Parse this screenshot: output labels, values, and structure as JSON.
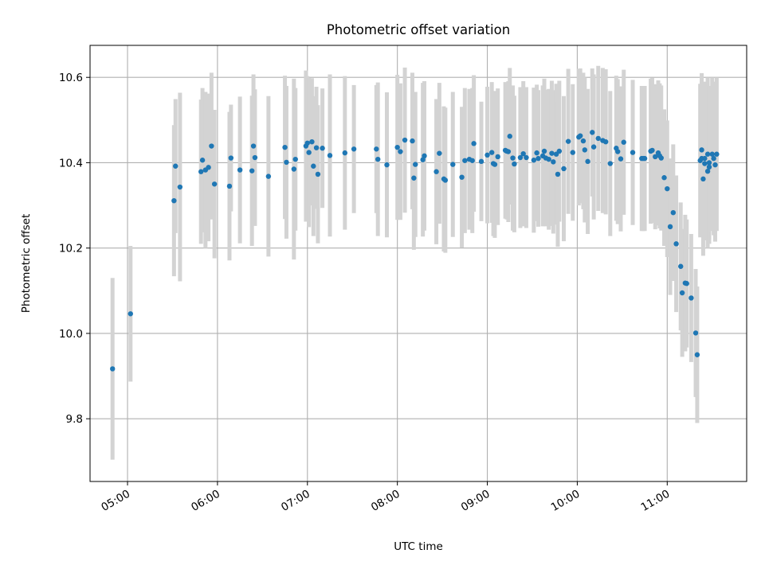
{
  "chart_data": {
    "type": "scatter",
    "title": "Photometric offset variation",
    "xlabel": "UTC time",
    "ylabel": "Photometric offset",
    "xlim": [
      "04:35",
      "11:53"
    ],
    "ylim": [
      9.653,
      10.675
    ],
    "x_ticks": [
      "05:00",
      "06:00",
      "07:00",
      "08:00",
      "09:00",
      "10:00",
      "11:00"
    ],
    "y_ticks": [
      "9.8",
      "10.0",
      "10.2",
      "10.4",
      "10.6"
    ],
    "grid": true,
    "colors": {
      "points": "#1f77b4",
      "error_bars": "#d3d3d3",
      "grid": "#b0b0b0"
    },
    "series": [
      {
        "x": [
          "04:50",
          "05:02",
          "05:31",
          "05:32",
          "05:35",
          "05:49",
          "05:50",
          "05:52",
          "05:54",
          "05:56",
          "05:58",
          "06:08",
          "06:09",
          "06:15",
          "06:23",
          "06:24",
          "06:25",
          "06:34",
          "06:45",
          "06:46",
          "06:51",
          "06:52",
          "06:59",
          "07:00",
          "07:01",
          "07:03",
          "07:04",
          "07:06",
          "07:07",
          "07:10",
          "07:15",
          "07:25",
          "07:31",
          "07:46",
          "07:47",
          "07:53",
          "08:00",
          "08:02",
          "08:05",
          "08:10",
          "08:11",
          "08:12",
          "08:17",
          "08:18",
          "08:26",
          "08:28",
          "08:31",
          "08:32",
          "08:37",
          "08:43",
          "08:45",
          "08:48",
          "08:50",
          "08:51",
          "08:56",
          "09:00",
          "09:03",
          "09:04",
          "09:05",
          "09:07",
          "09:12",
          "09:13",
          "09:14",
          "09:15",
          "09:17",
          "09:18",
          "09:22",
          "09:24",
          "09:26",
          "09:31",
          "09:33",
          "09:34",
          "09:37",
          "09:38",
          "09:39",
          "09:41",
          "09:43",
          "09:44",
          "09:46",
          "09:47",
          "09:48",
          "09:51",
          "09:54",
          "09:57",
          "10:01",
          "10:02",
          "10:04",
          "10:05",
          "10:07",
          "10:10",
          "10:11",
          "10:14",
          "10:17",
          "10:19",
          "10:22",
          "10:26",
          "10:27",
          "10:29",
          "10:31",
          "10:37",
          "10:43",
          "10:44",
          "10:45",
          "10:49",
          "10:50",
          "10:52",
          "10:54",
          "10:55",
          "10:56",
          "10:58",
          "11:00",
          "11:02",
          "11:04",
          "11:06",
          "11:09",
          "11:10",
          "11:12",
          "11:13",
          "11:16",
          "11:19",
          "11:20",
          "11:22",
          "11:23",
          "11:23",
          "11:24",
          "11:25",
          "11:25",
          "11:27",
          "11:27",
          "11:28",
          "11:28",
          "11:30",
          "11:31",
          "11:32",
          "11:33"
        ],
        "y": [
          9.917,
          10.046,
          10.311,
          10.392,
          10.343,
          10.379,
          10.406,
          10.383,
          10.389,
          10.439,
          10.35,
          10.345,
          10.411,
          10.383,
          10.381,
          10.439,
          10.412,
          10.368,
          10.436,
          10.401,
          10.385,
          10.408,
          10.439,
          10.446,
          10.424,
          10.449,
          10.392,
          10.435,
          10.373,
          10.434,
          10.417,
          10.423,
          10.432,
          10.432,
          10.408,
          10.395,
          10.436,
          10.426,
          10.453,
          10.451,
          10.364,
          10.396,
          10.407,
          10.416,
          10.379,
          10.422,
          10.362,
          10.359,
          10.396,
          10.366,
          10.405,
          10.408,
          10.405,
          10.445,
          10.403,
          10.418,
          10.424,
          10.398,
          10.396,
          10.414,
          10.429,
          10.427,
          10.426,
          10.462,
          10.411,
          10.397,
          10.412,
          10.421,
          10.412,
          10.406,
          10.423,
          10.41,
          10.416,
          10.427,
          10.411,
          10.408,
          10.422,
          10.402,
          10.42,
          10.373,
          10.427,
          10.386,
          10.45,
          10.424,
          10.46,
          10.463,
          10.451,
          10.43,
          10.403,
          10.471,
          10.437,
          10.457,
          10.452,
          10.449,
          10.398,
          10.434,
          10.426,
          10.409,
          10.448,
          10.424,
          10.41,
          10.41,
          10.41,
          10.427,
          10.429,
          10.414,
          10.423,
          10.416,
          10.411,
          10.365,
          10.339,
          10.25,
          10.283,
          10.21,
          10.157,
          10.095,
          10.118,
          10.117,
          10.083,
          10.001,
          9.95,
          10.405,
          10.41,
          10.43,
          10.362,
          10.398,
          10.41,
          10.38,
          10.42,
          10.39,
          10.4,
          10.42,
          10.41,
          10.395,
          10.42
        ],
        "yerr": [
          0.213,
          0.159,
          0.177,
          0.157,
          0.221,
          0.169,
          0.169,
          0.183,
          0.173,
          0.172,
          0.174,
          0.174,
          0.125,
          0.172,
          0.176,
          0.168,
          0.16,
          0.188,
          0.168,
          0.179,
          0.212,
          0.167,
          0.177,
          0.157,
          0.175,
          0.149,
          0.164,
          0.143,
          0.162,
          0.14,
          0.19,
          0.18,
          0.15,
          0.15,
          0.18,
          0.17,
          0.17,
          0.16,
          0.17,
          0.16,
          0.168,
          0.17,
          0.18,
          0.175,
          0.17,
          0.165,
          0.17,
          0.17,
          0.17,
          0.165,
          0.17,
          0.165,
          0.17,
          0.16,
          0.14,
          0.16,
          0.165,
          0.17,
          0.172,
          0.16,
          0.16,
          0.16,
          0.165,
          0.16,
          0.17,
          0.16,
          0.165,
          0.17,
          0.165,
          0.17,
          0.16,
          0.16,
          0.165,
          0.17,
          0.16,
          0.165,
          0.17,
          0.168,
          0.165,
          0.17,
          0.165,
          0.17,
          0.17,
          0.16,
          0.16,
          0.158,
          0.16,
          0.17,
          0.17,
          0.15,
          0.17,
          0.17,
          0.17,
          0.17,
          0.17,
          0.17,
          0.17,
          0.17,
          0.17,
          0.17,
          0.17,
          0.17,
          0.17,
          0.17,
          0.17,
          0.17,
          0.17,
          0.17,
          0.17,
          0.16,
          0.16,
          0.16,
          0.16,
          0.16,
          0.15,
          0.15,
          0.16,
          0.15,
          0.15,
          0.15,
          0.16,
          0.18,
          0.18,
          0.18,
          0.18,
          0.18,
          0.18,
          0.18,
          0.18,
          0.18,
          0.18,
          0.18,
          0.18,
          0.18,
          0.18
        ]
      }
    ]
  }
}
